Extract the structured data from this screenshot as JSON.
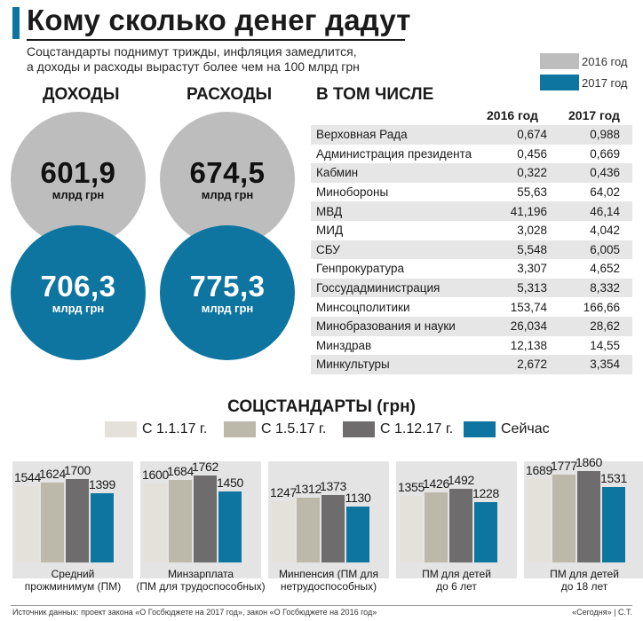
{
  "header": {
    "title": "Кому сколько денег дадут",
    "subtitle_line1": "Соцстандарты поднимут трижды, инфляция замедлится,",
    "subtitle_line2": "а доходы и расходы вырастут более чем на 100 млрд грн"
  },
  "year_legend": [
    {
      "label": "2016 год",
      "color": "#bdbdbd"
    },
    {
      "label": "2017 год",
      "color": "#0e75a0"
    }
  ],
  "budget": {
    "income": {
      "heading": "ДОХОДЫ",
      "y2016": "601,9",
      "y2017": "706,3"
    },
    "expenses": {
      "heading": "РАСХОДЫ",
      "y2016": "674,5",
      "y2017": "775,3"
    },
    "unit": "млрд грн"
  },
  "table": {
    "heading": "В ТОМ ЧИСЛЕ",
    "col2016": "2016 год",
    "col2017": "2017 год",
    "rows": [
      {
        "name": "Верховная Рада",
        "v2016": "0,674",
        "v2017": "0,988"
      },
      {
        "name": "Администрация президента",
        "v2016": "0,456",
        "v2017": "0,669"
      },
      {
        "name": "Кабмин",
        "v2016": "0,322",
        "v2017": "0,436"
      },
      {
        "name": "Минобороны",
        "v2016": "55,63",
        "v2017": "64,02"
      },
      {
        "name": "МВД",
        "v2016": "41,196",
        "v2017": "46,14"
      },
      {
        "name": "МИД",
        "v2016": "3,028",
        "v2017": "4,042"
      },
      {
        "name": "СБУ",
        "v2016": "5,548",
        "v2017": "6,005"
      },
      {
        "name": "Генпрокуратура",
        "v2016": "3,307",
        "v2017": "4,652"
      },
      {
        "name": "Госсудадминистрация",
        "v2016": "5,313",
        "v2017": "8,332"
      },
      {
        "name": "Минсоцполитики",
        "v2016": "153,74",
        "v2017": "166,66"
      },
      {
        "name": "Минобразования и науки",
        "v2016": "26,034",
        "v2017": "28,62"
      },
      {
        "name": "Минздрав",
        "v2016": "12,138",
        "v2017": "14,55"
      },
      {
        "name": "Минкультуры",
        "v2016": "2,672",
        "v2017": "3,354"
      }
    ]
  },
  "chart_data": {
    "type": "bar",
    "title": "СОЦСТАНДАРТЫ (грн)",
    "series": [
      {
        "name": "С 1.1.17 г.",
        "color": "#e3e1da"
      },
      {
        "name": "С 1.5.17 г.",
        "color": "#bcb8aa"
      },
      {
        "name": "С 1.12.17 г.",
        "color": "#6e6c6c"
      },
      {
        "name": "Сейчас",
        "color": "#0e75a0"
      }
    ],
    "groups": [
      {
        "label_line1": "Средний",
        "label_line2": "прожминимум (ПМ)",
        "values": [
          1544,
          1624,
          1700,
          1399
        ]
      },
      {
        "label_line1": "Минзарплата",
        "label_line2": "(ПМ для трудоспособных)",
        "values": [
          1600,
          1684,
          1762,
          1450
        ]
      },
      {
        "label_line1": "Минпенсия (ПМ для",
        "label_line2": "нетрудоспособных)",
        "values": [
          1247,
          1312,
          1373,
          1130
        ]
      },
      {
        "label_line1": "ПМ для детей",
        "label_line2": "до 6 лет",
        "values": [
          1355,
          1426,
          1492,
          1228
        ]
      },
      {
        "label_line1": "ПМ для детей",
        "label_line2": "до 18 лет",
        "values": [
          1689,
          1777,
          1860,
          1531
        ]
      }
    ]
  },
  "footer": {
    "source": "Источник данных: проект закона «О Госбюджете на 2017 год», закон «О Госбюджете на 2016 год»",
    "credit": "«Сегодня» | С.Т."
  }
}
